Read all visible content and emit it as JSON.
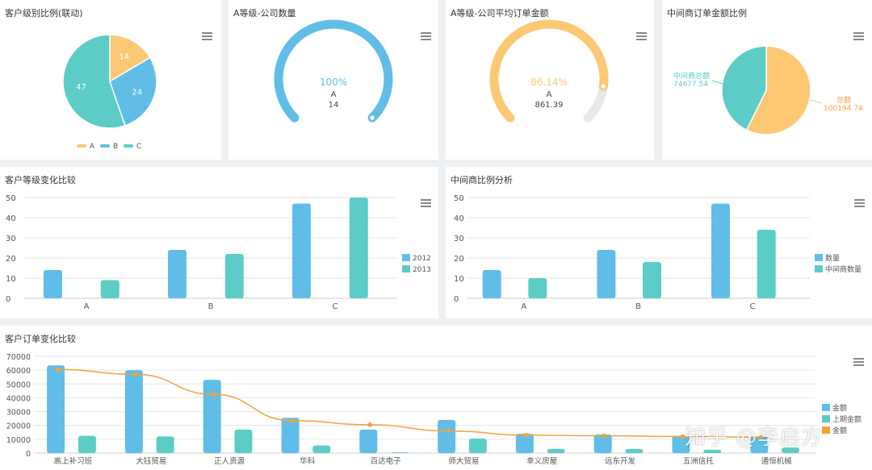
{
  "colors": {
    "a": "#fcc873",
    "blue": "#60bde8",
    "teal": "#5ccdc6",
    "line": "#f4a13a",
    "grid": "#e6e6e6",
    "gray": "#e8e8e8"
  },
  "panels": {
    "p1": {
      "title": "客户级别比例(联动)"
    },
    "p2": {
      "title": "A等级-公司数量"
    },
    "p3": {
      "title": "A等级-公司平均订单金额"
    },
    "p4": {
      "title": "中间商订单金额比例"
    },
    "p5": {
      "title": "客户等级变化比较"
    },
    "p6": {
      "title": "中间商比例分析"
    },
    "p7": {
      "title": "客户订单变化比较"
    }
  },
  "gauges": {
    "g1": {
      "percent_label": "100%",
      "name": "A",
      "value_label": "14"
    },
    "g2": {
      "percent_label": "86.14%",
      "name": "A",
      "value_label": "861.39"
    }
  },
  "watermark": "知乎 @李启方",
  "chart_data": [
    {
      "type": "pie",
      "title": "客户级别比例(联动)",
      "slices": [
        {
          "name": "A",
          "value": 14
        },
        {
          "name": "B",
          "value": 24
        },
        {
          "name": "C",
          "value": 47
        }
      ],
      "legend": "bottom"
    },
    {
      "type": "gauge",
      "title": "A等级-公司数量",
      "name": "A",
      "value": 14,
      "percent": 100
    },
    {
      "type": "gauge",
      "title": "A等级-公司平均订单金额",
      "name": "A",
      "value": 861.39,
      "percent": 86.14
    },
    {
      "type": "pie",
      "title": "中间商订单金额比例",
      "slices": [
        {
          "name": "中间商总额",
          "value": 74677.54
        },
        {
          "name": "总额",
          "value": 100194.74
        }
      ]
    },
    {
      "type": "bar",
      "title": "客户等级变化比较",
      "categories": [
        "A",
        "B",
        "C"
      ],
      "series": [
        {
          "name": "2012",
          "values": [
            14,
            24,
            47
          ]
        },
        {
          "name": "2013",
          "values": [
            9,
            22,
            50
          ]
        }
      ],
      "ylim": [
        0,
        50
      ],
      "yticks": [
        0,
        10,
        20,
        30,
        40,
        50
      ],
      "legend": "right"
    },
    {
      "type": "bar",
      "title": "中间商比例分析",
      "categories": [
        "A",
        "B",
        "C"
      ],
      "series": [
        {
          "name": "数量",
          "values": [
            14,
            24,
            47
          ]
        },
        {
          "name": "中间商数量",
          "values": [
            10,
            18,
            34
          ]
        }
      ],
      "ylim": [
        0,
        50
      ],
      "yticks": [
        0,
        10,
        20,
        30,
        40,
        50
      ],
      "legend": "right"
    },
    {
      "type": "bar",
      "title": "客户订单变化比较",
      "categories": [
        "高上补习班",
        "大钰贸易",
        "正人资源",
        "华科",
        "百达电子",
        "师大贸易",
        "幸义房屋",
        "远东开发",
        "五洲信托",
        "通恒机械"
      ],
      "series": [
        {
          "name": "金额",
          "values": [
            63500,
            60000,
            53000,
            25500,
            17000,
            24000,
            14000,
            13500,
            12500,
            12000
          ]
        },
        {
          "name": "上期金额",
          "values": [
            12500,
            12000,
            17000,
            5500,
            500,
            10500,
            3000,
            3000,
            2500,
            4000
          ]
        },
        {
          "name": "金额",
          "kind": "line",
          "values": [
            60500,
            57000,
            42500,
            23500,
            20500,
            16000,
            13000,
            12500,
            12000,
            11500
          ]
        }
      ],
      "ylim": [
        0,
        70000
      ],
      "yticks": [
        0,
        10000,
        20000,
        30000,
        40000,
        50000,
        60000,
        70000
      ],
      "legend": "right"
    }
  ]
}
